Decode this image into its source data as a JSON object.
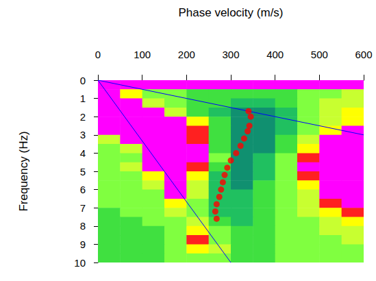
{
  "chart_data": {
    "type": "heatmap",
    "xlabel": "Phase velocity (m/s)",
    "ylabel": "Frequency (Hz)",
    "xlim": [
      0,
      600
    ],
    "xticks": [
      0,
      100,
      200,
      300,
      400,
      500,
      600
    ],
    "ylim": [
      0,
      10
    ],
    "yticks": [
      0,
      1,
      2,
      3,
      4,
      5,
      6,
      7,
      8,
      9,
      10
    ],
    "grid": false,
    "heatmap": {
      "xbins": [
        0,
        50,
        100,
        150,
        200,
        250,
        300,
        350,
        400,
        450,
        500,
        550,
        600
      ],
      "ybins": [
        0,
        0.5,
        1,
        1.5,
        2,
        2.5,
        3,
        3.5,
        4,
        4.5,
        5,
        5.5,
        6,
        6.5,
        7,
        7.5,
        8,
        8.5,
        9,
        9.5,
        10
      ],
      "zlim": [
        0,
        10
      ],
      "colorscale": [
        "#ff00ff",
        "#ff00ff",
        "#ff00ff",
        "#ff2020",
        "#ffff00",
        "#c8ff30",
        "#80ff40",
        "#40e040",
        "#20c060",
        "#109070",
        "#006060"
      ],
      "cells": [
        [
          1,
          1,
          1,
          1,
          1,
          1,
          1,
          1,
          1,
          1,
          1,
          1
        ],
        [
          1,
          4,
          6,
          6,
          7,
          7,
          7,
          7,
          7,
          6,
          6,
          5
        ],
        [
          1,
          1,
          5,
          6,
          7,
          7,
          8,
          8,
          7,
          6,
          5,
          5
        ],
        [
          1,
          1,
          2,
          5,
          7,
          8,
          9,
          9,
          8,
          6,
          5,
          4
        ],
        [
          1,
          1,
          1,
          1,
          4,
          7,
          9,
          9,
          8,
          6,
          5,
          4
        ],
        [
          1,
          1,
          1,
          1,
          3,
          7,
          9,
          9,
          8,
          6,
          4,
          2
        ],
        [
          5,
          1,
          1,
          1,
          3,
          7,
          9,
          9,
          7,
          5,
          2,
          1
        ],
        [
          6,
          5,
          1,
          1,
          2,
          7,
          9,
          9,
          7,
          4,
          1,
          1
        ],
        [
          6,
          6,
          1,
          1,
          1,
          6,
          9,
          8,
          6,
          3,
          1,
          1
        ],
        [
          6,
          5,
          1,
          1,
          3,
          7,
          9,
          8,
          6,
          2,
          1,
          1
        ],
        [
          6,
          6,
          4,
          1,
          4,
          8,
          9,
          8,
          6,
          3,
          1,
          1
        ],
        [
          6,
          6,
          5,
          1,
          5,
          8,
          9,
          7,
          6,
          4,
          1,
          1
        ],
        [
          6,
          6,
          6,
          2,
          5,
          8,
          8,
          7,
          6,
          5,
          2,
          1
        ],
        [
          6,
          6,
          6,
          4,
          6,
          8,
          8,
          7,
          6,
          5,
          3,
          1
        ],
        [
          7,
          6,
          6,
          5,
          6,
          8,
          8,
          7,
          6,
          5,
          4,
          3
        ],
        [
          7,
          7,
          6,
          6,
          5,
          7,
          8,
          7,
          6,
          6,
          5,
          4
        ],
        [
          7,
          7,
          7,
          6,
          4,
          6,
          7,
          7,
          6,
          6,
          5,
          5
        ],
        [
          7,
          7,
          7,
          6,
          3,
          6,
          7,
          7,
          6,
          6,
          6,
          5
        ],
        [
          7,
          7,
          7,
          6,
          4,
          5,
          7,
          7,
          6,
          6,
          6,
          6
        ],
        [
          7,
          7,
          7,
          6,
          6,
          6,
          7,
          7,
          6,
          6,
          6,
          6
        ]
      ]
    },
    "series": [
      {
        "type": "scatter",
        "color": "#ff0000",
        "marker": "circle",
        "x": [
          340,
          345,
          342,
          338,
          330,
          322,
          312,
          300,
          292,
          286,
          282,
          278,
          274,
          268,
          265,
          268
        ],
        "values": [
          1.7,
          2.0,
          2.5,
          2.8,
          3.2,
          3.6,
          4.0,
          4.4,
          4.8,
          5.2,
          5.6,
          6.0,
          6.4,
          6.8,
          7.2,
          7.6
        ]
      },
      {
        "type": "line",
        "color": "#0000ff",
        "line_style": "solid",
        "x": [
          0,
          600
        ],
        "values": [
          0,
          3
        ]
      },
      {
        "type": "line",
        "color": "#0000ff",
        "line_style": "solid",
        "x": [
          0,
          300
        ],
        "values": [
          0,
          10
        ]
      }
    ]
  }
}
